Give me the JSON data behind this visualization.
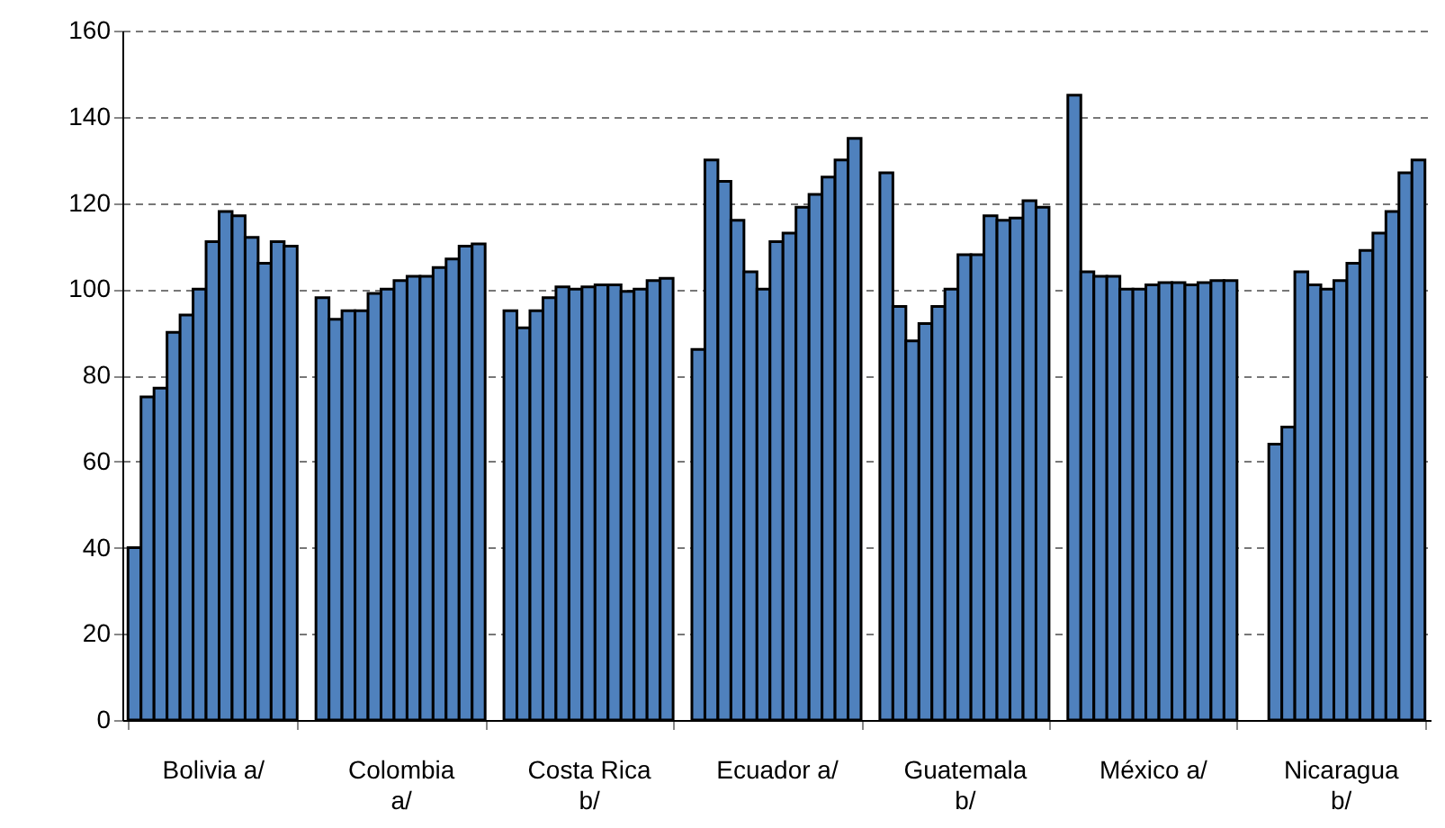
{
  "chart_data": {
    "type": "bar",
    "categories": [
      "Bolivia a/",
      "Colombia a/",
      "Costa Rica b/",
      "Ecuador a/",
      "Guatemala b/",
      "México a/",
      "Nicaragua b/"
    ],
    "series": [
      {
        "color": "#4f81bd",
        "values": [
          40,
          98,
          95,
          86,
          127,
          145,
          null
        ]
      },
      {
        "color": "#4f81bd",
        "values": [
          75,
          93,
          91,
          130,
          96,
          104,
          64
        ]
      },
      {
        "color": "#4f81bd",
        "values": [
          77,
          95,
          95,
          125,
          88,
          103,
          68
        ]
      },
      {
        "color": "#4f81bd",
        "values": [
          90,
          95,
          98,
          116,
          92,
          103,
          104
        ]
      },
      {
        "color": "#4f81bd",
        "values": [
          94,
          99,
          100.5,
          104,
          96,
          100,
          101
        ]
      },
      {
        "color": "#4f81bd",
        "values": [
          100,
          100,
          100,
          100,
          100,
          100,
          100
        ]
      },
      {
        "color": "#4f81bd",
        "values": [
          111,
          102,
          100.5,
          111,
          108,
          101,
          102
        ]
      },
      {
        "color": "#4f81bd",
        "values": [
          118,
          103,
          101,
          113,
          108,
          101.5,
          106
        ]
      },
      {
        "color": "#4f81bd",
        "values": [
          117,
          103,
          101,
          119,
          117,
          101.5,
          109
        ]
      },
      {
        "color": "#4f81bd",
        "values": [
          112,
          105,
          99.5,
          122,
          116,
          101,
          113
        ]
      },
      {
        "color": "#4f81bd",
        "values": [
          106,
          107,
          100,
          126,
          116.5,
          101.5,
          118
        ]
      },
      {
        "color": "#4f81bd",
        "values": [
          111,
          110,
          102,
          130,
          120.5,
          102,
          127
        ]
      },
      {
        "color": "#4f81bd",
        "values": [
          110,
          110.5,
          102.5,
          135,
          119,
          102,
          130
        ]
      }
    ],
    "ylim": [
      0,
      160
    ],
    "yticks": [
      0,
      20,
      40,
      60,
      80,
      100,
      120,
      140,
      160
    ],
    "grid": "y"
  }
}
